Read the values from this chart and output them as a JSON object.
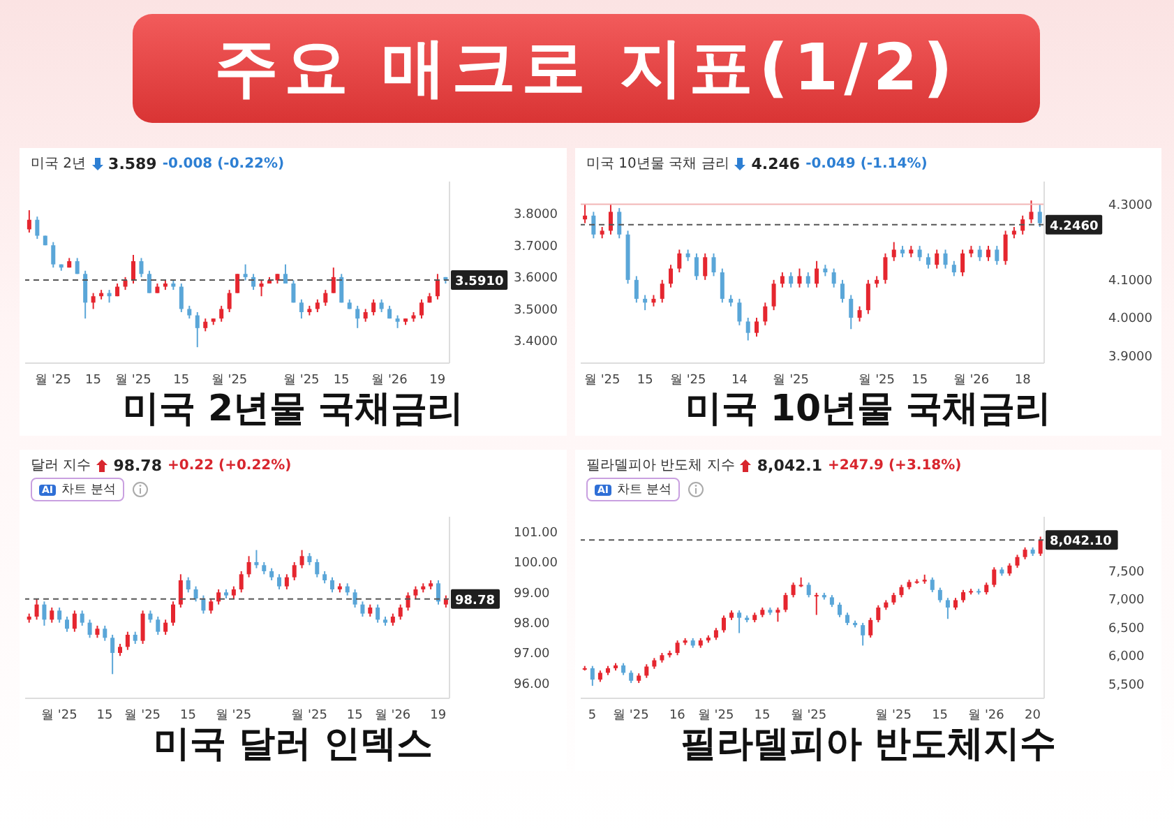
{
  "chart_data": [
    {
      "type": "other",
      "title": "주요 매크로 지표(1/2)"
    },
    {
      "type": "candlestick",
      "title": "미국 2년물 국채금리",
      "subtitle": "미국 2년",
      "annotations": [
        "3.589",
        "-0.008 (-0.22%)"
      ],
      "categories": [
        null,
        null,
        null,
        "월 '25",
        null,
        null,
        null,
        null,
        "15",
        null,
        null,
        null,
        null,
        "월 '25",
        null,
        null,
        null,
        null,
        null,
        "15",
        null,
        null,
        null,
        null,
        null,
        "월 '25",
        null,
        null,
        null,
        null,
        null,
        null,
        null,
        null,
        "월 '25",
        null,
        null,
        null,
        null,
        "15",
        null,
        null,
        null,
        null,
        null,
        "월 '26",
        null,
        null,
        null,
        null,
        null,
        "19",
        null
      ],
      "ohlc": [
        [
          3.75,
          3.81,
          3.74,
          3.78
        ],
        [
          3.78,
          3.79,
          3.72,
          3.73
        ],
        [
          3.73,
          3.73,
          3.7,
          3.7
        ],
        [
          3.7,
          3.71,
          3.63,
          3.64
        ],
        [
          3.64,
          3.64,
          3.62,
          3.63
        ],
        [
          3.63,
          3.66,
          3.63,
          3.65
        ],
        [
          3.65,
          3.66,
          3.61,
          3.61
        ],
        [
          3.61,
          3.62,
          3.47,
          3.52
        ],
        [
          3.52,
          3.55,
          3.5,
          3.54
        ],
        [
          3.54,
          3.56,
          3.53,
          3.55
        ],
        [
          3.55,
          3.56,
          3.52,
          3.54
        ],
        [
          3.54,
          3.58,
          3.54,
          3.57
        ],
        [
          3.57,
          3.6,
          3.56,
          3.59
        ],
        [
          3.59,
          3.67,
          3.58,
          3.65
        ],
        [
          3.65,
          3.66,
          3.6,
          3.61
        ],
        [
          3.61,
          3.62,
          3.55,
          3.55
        ],
        [
          3.55,
          3.58,
          3.55,
          3.57
        ],
        [
          3.57,
          3.59,
          3.56,
          3.58
        ],
        [
          3.58,
          3.59,
          3.56,
          3.57
        ],
        [
          3.57,
          3.58,
          3.49,
          3.5
        ],
        [
          3.5,
          3.51,
          3.47,
          3.48
        ],
        [
          3.48,
          3.49,
          3.38,
          3.44
        ],
        [
          3.44,
          3.47,
          3.43,
          3.46
        ],
        [
          3.46,
          3.47,
          3.45,
          3.47
        ],
        [
          3.47,
          3.51,
          3.46,
          3.5
        ],
        [
          3.5,
          3.56,
          3.49,
          3.55
        ],
        [
          3.55,
          3.61,
          3.55,
          3.61
        ],
        [
          3.61,
          3.64,
          3.59,
          3.6
        ],
        [
          3.6,
          3.61,
          3.56,
          3.57
        ],
        [
          3.57,
          3.59,
          3.54,
          3.58
        ],
        [
          3.58,
          3.6,
          3.58,
          3.59
        ],
        [
          3.59,
          3.61,
          3.58,
          3.61
        ],
        [
          3.61,
          3.64,
          3.58,
          3.58
        ],
        [
          3.58,
          3.59,
          3.52,
          3.52
        ],
        [
          3.52,
          3.53,
          3.47,
          3.49
        ],
        [
          3.49,
          3.51,
          3.48,
          3.5
        ],
        [
          3.5,
          3.53,
          3.49,
          3.52
        ],
        [
          3.52,
          3.56,
          3.51,
          3.55
        ],
        [
          3.55,
          3.63,
          3.55,
          3.6
        ],
        [
          3.6,
          3.61,
          3.52,
          3.52
        ],
        [
          3.52,
          3.53,
          3.5,
          3.5
        ],
        [
          3.5,
          3.51,
          3.44,
          3.47
        ],
        [
          3.47,
          3.5,
          3.46,
          3.49
        ],
        [
          3.49,
          3.53,
          3.48,
          3.52
        ],
        [
          3.52,
          3.53,
          3.49,
          3.5
        ],
        [
          3.5,
          3.51,
          3.47,
          3.47
        ],
        [
          3.47,
          3.48,
          3.44,
          3.46
        ],
        [
          3.46,
          3.47,
          3.45,
          3.47
        ],
        [
          3.47,
          3.49,
          3.46,
          3.48
        ],
        [
          3.48,
          3.53,
          3.47,
          3.52
        ],
        [
          3.52,
          3.55,
          3.52,
          3.54
        ],
        [
          3.54,
          3.61,
          3.53,
          3.59
        ],
        [
          3.6,
          3.6,
          3.58,
          3.59
        ]
      ],
      "ylim": [
        3.33,
        3.9
      ],
      "yticks": [
        {
          "value": 3.4,
          "label": "3.4000"
        },
        {
          "value": 3.5,
          "label": "3.5000"
        },
        {
          "value": 3.6,
          "label": "3.6000"
        },
        {
          "value": 3.7,
          "label": "3.7000"
        },
        {
          "value": 3.8,
          "label": "3.8000"
        }
      ],
      "ref_lines": [
        {
          "axis": "y",
          "value": 3.591,
          "label": "3.5910",
          "line_style": "dashed"
        }
      ]
    },
    {
      "type": "candlestick",
      "title": "미국 10년물 국채금리",
      "subtitle": "미국 10년물 국채 금리",
      "annotations": [
        "4.246",
        "-0.049 (-1.14%)"
      ],
      "categories": [
        null,
        null,
        "월 '25",
        null,
        null,
        null,
        null,
        "15",
        null,
        null,
        null,
        null,
        "월 '25",
        null,
        null,
        null,
        null,
        null,
        "14",
        null,
        null,
        null,
        null,
        null,
        "월 '25",
        null,
        null,
        null,
        null,
        null,
        null,
        null,
        null,
        null,
        "월 '25",
        null,
        null,
        null,
        null,
        "15",
        null,
        null,
        null,
        null,
        null,
        "월 '26",
        null,
        null,
        null,
        null,
        null,
        "18",
        null,
        null
      ],
      "ohlc": [
        [
          4.26,
          4.3,
          4.25,
          4.27
        ],
        [
          4.27,
          4.28,
          4.21,
          4.22
        ],
        [
          4.22,
          4.24,
          4.21,
          4.23
        ],
        [
          4.23,
          4.3,
          4.22,
          4.28
        ],
        [
          4.28,
          4.29,
          4.21,
          4.22
        ],
        [
          4.22,
          4.23,
          4.09,
          4.1
        ],
        [
          4.1,
          4.11,
          4.04,
          4.05
        ],
        [
          4.05,
          4.06,
          4.02,
          4.04
        ],
        [
          4.04,
          4.06,
          4.03,
          4.05
        ],
        [
          4.05,
          4.1,
          4.04,
          4.09
        ],
        [
          4.09,
          4.14,
          4.08,
          4.13
        ],
        [
          4.13,
          4.18,
          4.12,
          4.17
        ],
        [
          4.17,
          4.18,
          4.15,
          4.16
        ],
        [
          4.16,
          4.17,
          4.1,
          4.11
        ],
        [
          4.11,
          4.17,
          4.1,
          4.16
        ],
        [
          4.16,
          4.17,
          4.11,
          4.12
        ],
        [
          4.12,
          4.13,
          4.04,
          4.05
        ],
        [
          4.05,
          4.06,
          4.03,
          4.04
        ],
        [
          4.04,
          4.05,
          3.98,
          3.99
        ],
        [
          3.99,
          4.0,
          3.94,
          3.96
        ],
        [
          3.96,
          4.0,
          3.95,
          3.99
        ],
        [
          3.99,
          4.04,
          3.98,
          4.03
        ],
        [
          4.03,
          4.1,
          4.02,
          4.09
        ],
        [
          4.09,
          4.12,
          4.08,
          4.11
        ],
        [
          4.11,
          4.12,
          4.08,
          4.09
        ],
        [
          4.09,
          4.13,
          4.08,
          4.11
        ],
        [
          4.11,
          4.12,
          4.08,
          4.09
        ],
        [
          4.09,
          4.15,
          4.08,
          4.13
        ],
        [
          4.13,
          4.14,
          4.11,
          4.12
        ],
        [
          4.12,
          4.13,
          4.08,
          4.09
        ],
        [
          4.09,
          4.1,
          4.04,
          4.05
        ],
        [
          4.05,
          4.06,
          3.97,
          4.0
        ],
        [
          4.0,
          4.03,
          3.99,
          4.02
        ],
        [
          4.02,
          4.1,
          4.01,
          4.09
        ],
        [
          4.09,
          4.11,
          4.08,
          4.1
        ],
        [
          4.1,
          4.17,
          4.09,
          4.16
        ],
        [
          4.16,
          4.2,
          4.15,
          4.18
        ],
        [
          4.18,
          4.19,
          4.16,
          4.17
        ],
        [
          4.17,
          4.19,
          4.16,
          4.18
        ],
        [
          4.18,
          4.19,
          4.15,
          4.16
        ],
        [
          4.16,
          4.17,
          4.13,
          4.14
        ],
        [
          4.14,
          4.18,
          4.13,
          4.17
        ],
        [
          4.17,
          4.18,
          4.13,
          4.14
        ],
        [
          4.14,
          4.15,
          4.11,
          4.12
        ],
        [
          4.12,
          4.18,
          4.11,
          4.17
        ],
        [
          4.17,
          4.19,
          4.16,
          4.18
        ],
        [
          4.18,
          4.19,
          4.15,
          4.16
        ],
        [
          4.16,
          4.19,
          4.15,
          4.18
        ],
        [
          4.18,
          4.19,
          4.14,
          4.15
        ],
        [
          4.15,
          4.23,
          4.14,
          4.22
        ],
        [
          4.22,
          4.24,
          4.21,
          4.23
        ],
        [
          4.23,
          4.27,
          4.22,
          4.26
        ],
        [
          4.26,
          4.31,
          4.25,
          4.28
        ],
        [
          4.28,
          4.3,
          4.24,
          4.25
        ]
      ],
      "ylim": [
        3.88,
        4.36
      ],
      "yticks": [
        {
          "value": 3.9,
          "label": "3.9000"
        },
        {
          "value": 4.0,
          "label": "4.0000"
        },
        {
          "value": 4.1,
          "label": "4.1000"
        },
        {
          "value": 4.3,
          "label": "4.3000"
        }
      ],
      "ref_lines": [
        {
          "axis": "y",
          "value": 4.3,
          "color": "#f2b5b5",
          "line_style": "solid"
        },
        {
          "axis": "y",
          "value": 4.246,
          "label": "4.2460",
          "line_style": "dashed"
        }
      ]
    },
    {
      "type": "candlestick",
      "title": "미국 달러 인덱스",
      "subtitle": "달러 지수",
      "annotations": [
        "98.78",
        "+0.22 (+0.22%)",
        "AI",
        "차트 분석"
      ],
      "categories": [
        null,
        null,
        null,
        null,
        "월 '25",
        null,
        null,
        null,
        null,
        null,
        "15",
        null,
        null,
        null,
        null,
        "월 '25",
        null,
        null,
        null,
        null,
        null,
        "15",
        null,
        null,
        null,
        null,
        null,
        "월 '25",
        null,
        null,
        null,
        null,
        null,
        null,
        null,
        null,
        null,
        "월 '25",
        null,
        null,
        null,
        null,
        null,
        "15",
        null,
        null,
        null,
        null,
        "월 '26",
        null,
        null,
        null,
        null,
        null,
        "19",
        null
      ],
      "ohlc": [
        [
          98.1,
          98.3,
          98.0,
          98.2
        ],
        [
          98.2,
          98.8,
          98.1,
          98.6
        ],
        [
          98.6,
          98.7,
          97.9,
          98.1
        ],
        [
          98.1,
          98.5,
          98.0,
          98.4
        ],
        [
          98.4,
          98.5,
          98.0,
          98.1
        ],
        [
          98.1,
          98.2,
          97.7,
          97.8
        ],
        [
          97.8,
          98.4,
          97.7,
          98.3
        ],
        [
          98.3,
          98.4,
          97.9,
          98.0
        ],
        [
          98.0,
          98.1,
          97.5,
          97.6
        ],
        [
          97.6,
          97.9,
          97.5,
          97.8
        ],
        [
          97.8,
          97.9,
          97.4,
          97.5
        ],
        [
          97.5,
          97.6,
          96.3,
          97.0
        ],
        [
          97.0,
          97.3,
          96.9,
          97.2
        ],
        [
          97.2,
          97.7,
          97.1,
          97.6
        ],
        [
          97.6,
          97.7,
          97.3,
          97.4
        ],
        [
          97.4,
          98.4,
          97.3,
          98.3
        ],
        [
          98.3,
          98.4,
          98.0,
          98.1
        ],
        [
          98.1,
          98.2,
          97.6,
          97.7
        ],
        [
          97.7,
          98.1,
          97.6,
          98.0
        ],
        [
          98.0,
          98.7,
          97.9,
          98.6
        ],
        [
          98.6,
          99.6,
          98.5,
          99.4
        ],
        [
          99.4,
          99.5,
          99.0,
          99.1
        ],
        [
          99.1,
          99.2,
          98.7,
          98.8
        ],
        [
          98.8,
          98.9,
          98.3,
          98.4
        ],
        [
          98.4,
          98.8,
          98.3,
          98.7
        ],
        [
          98.7,
          99.1,
          98.6,
          99.0
        ],
        [
          99.0,
          99.1,
          98.8,
          98.9
        ],
        [
          98.9,
          99.2,
          98.8,
          99.1
        ],
        [
          99.1,
          99.7,
          99.0,
          99.6
        ],
        [
          99.6,
          100.2,
          99.5,
          100.0
        ],
        [
          100.0,
          100.4,
          99.8,
          99.9
        ],
        [
          99.9,
          100.0,
          99.6,
          99.7
        ],
        [
          99.7,
          99.8,
          99.4,
          99.5
        ],
        [
          99.5,
          99.6,
          99.1,
          99.2
        ],
        [
          99.2,
          99.6,
          99.1,
          99.5
        ],
        [
          99.5,
          100.0,
          99.4,
          99.9
        ],
        [
          99.9,
          100.4,
          99.8,
          100.2
        ],
        [
          100.2,
          100.3,
          99.9,
          100.0
        ],
        [
          100.0,
          100.1,
          99.5,
          99.6
        ],
        [
          99.6,
          99.7,
          99.3,
          99.4
        ],
        [
          99.4,
          99.5,
          99.0,
          99.1
        ],
        [
          99.1,
          99.3,
          99.0,
          99.2
        ],
        [
          99.2,
          99.3,
          98.9,
          99.0
        ],
        [
          99.0,
          99.1,
          98.5,
          98.6
        ],
        [
          98.6,
          98.7,
          98.2,
          98.3
        ],
        [
          98.3,
          98.6,
          98.2,
          98.5
        ],
        [
          98.5,
          98.6,
          98.0,
          98.1
        ],
        [
          98.1,
          98.2,
          97.9,
          98.0
        ],
        [
          98.0,
          98.3,
          97.9,
          98.2
        ],
        [
          98.2,
          98.6,
          98.1,
          98.5
        ],
        [
          98.5,
          99.0,
          98.4,
          98.9
        ],
        [
          98.9,
          99.2,
          98.8,
          99.1
        ],
        [
          99.1,
          99.3,
          99.0,
          99.2
        ],
        [
          99.2,
          99.4,
          99.1,
          99.3
        ],
        [
          99.3,
          99.4,
          98.6,
          98.7
        ],
        [
          98.6,
          98.9,
          98.5,
          98.8
        ]
      ],
      "ylim": [
        95.5,
        101.5
      ],
      "yticks": [
        {
          "value": 96,
          "label": "96.00"
        },
        {
          "value": 97,
          "label": "97.00"
        },
        {
          "value": 98,
          "label": "98.00"
        },
        {
          "value": 99,
          "label": "99.00"
        },
        {
          "value": 100,
          "label": "100.00"
        },
        {
          "value": 101,
          "label": "101.00"
        }
      ],
      "ref_lines": [
        {
          "axis": "y",
          "value": 98.78,
          "label": "98.78",
          "line_style": "dashed"
        }
      ]
    },
    {
      "type": "candlestick",
      "title": "필라델피아 반도체지수",
      "subtitle": "필라델피아 반도체 지수",
      "annotations": [
        "8,042.1",
        "+247.9 (+3.18%)",
        "AI",
        "차트 분석"
      ],
      "categories": [
        null,
        "5",
        null,
        null,
        null,
        null,
        "월 '25",
        null,
        null,
        null,
        null,
        null,
        "16",
        null,
        null,
        null,
        null,
        "월 '25",
        null,
        null,
        null,
        null,
        null,
        "15",
        null,
        null,
        null,
        null,
        null,
        "월 '25",
        null,
        null,
        null,
        null,
        null,
        null,
        null,
        null,
        null,
        null,
        "월 '25",
        null,
        null,
        null,
        null,
        null,
        "15",
        null,
        null,
        null,
        null,
        null,
        "월 '26",
        null,
        null,
        null,
        null,
        null,
        "20",
        null
      ],
      "ohlc": [
        [
          5760,
          5820,
          5740,
          5780
        ],
        [
          5780,
          5820,
          5470,
          5580
        ],
        [
          5580,
          5740,
          5540,
          5700
        ],
        [
          5700,
          5820,
          5660,
          5780
        ],
        [
          5780,
          5870,
          5740,
          5830
        ],
        [
          5830,
          5870,
          5660,
          5700
        ],
        [
          5700,
          5740,
          5520,
          5560
        ],
        [
          5560,
          5690,
          5520,
          5650
        ],
        [
          5650,
          5850,
          5610,
          5810
        ],
        [
          5810,
          5960,
          5770,
          5920
        ],
        [
          5920,
          6050,
          5880,
          6010
        ],
        [
          6010,
          6090,
          5970,
          6050
        ],
        [
          6050,
          6270,
          6010,
          6230
        ],
        [
          6230,
          6310,
          6190,
          6270
        ],
        [
          6270,
          6310,
          6140,
          6180
        ],
        [
          6180,
          6310,
          6140,
          6270
        ],
        [
          6270,
          6360,
          6230,
          6320
        ],
        [
          6320,
          6490,
          6280,
          6450
        ],
        [
          6450,
          6710,
          6410,
          6670
        ],
        [
          6670,
          6800,
          6630,
          6760
        ],
        [
          6760,
          6800,
          6400,
          6670
        ],
        [
          6670,
          6710,
          6590,
          6630
        ],
        [
          6630,
          6760,
          6590,
          6720
        ],
        [
          6720,
          6850,
          6680,
          6810
        ],
        [
          6810,
          6850,
          6720,
          6760
        ],
        [
          6760,
          6850,
          6600,
          6810
        ],
        [
          6810,
          7110,
          6770,
          7070
        ],
        [
          7070,
          7290,
          7030,
          7250
        ],
        [
          7250,
          7380,
          7210,
          7250
        ],
        [
          7250,
          7290,
          7030,
          7070
        ],
        [
          7070,
          7110,
          6720,
          7070
        ],
        [
          7070,
          7110,
          6990,
          7030
        ],
        [
          7030,
          7070,
          6860,
          6900
        ],
        [
          6900,
          6940,
          6680,
          6720
        ],
        [
          6720,
          6760,
          6540,
          6580
        ],
        [
          6580,
          6620,
          6500,
          6540
        ],
        [
          6540,
          6580,
          6180,
          6360
        ],
        [
          6360,
          6670,
          6320,
          6630
        ],
        [
          6630,
          6890,
          6590,
          6850
        ],
        [
          6850,
          6980,
          6810,
          6940
        ],
        [
          6940,
          7110,
          6900,
          7070
        ],
        [
          7070,
          7250,
          7030,
          7210
        ],
        [
          7210,
          7340,
          7170,
          7300
        ],
        [
          7300,
          7350,
          7270,
          7310
        ],
        [
          7310,
          7430,
          7270,
          7340
        ],
        [
          7340,
          7380,
          7120,
          7160
        ],
        [
          7160,
          7200,
          6940,
          6980
        ],
        [
          6980,
          7020,
          6650,
          6850
        ],
        [
          6850,
          7020,
          6810,
          6980
        ],
        [
          6980,
          7160,
          6940,
          7120
        ],
        [
          7120,
          7180,
          7080,
          7140
        ],
        [
          7140,
          7180,
          7080,
          7120
        ],
        [
          7120,
          7290,
          7080,
          7250
        ],
        [
          7250,
          7560,
          7210,
          7520
        ],
        [
          7520,
          7560,
          7410,
          7450
        ],
        [
          7450,
          7630,
          7410,
          7590
        ],
        [
          7590,
          7780,
          7550,
          7740
        ],
        [
          7740,
          7910,
          7700,
          7870
        ],
        [
          7870,
          7910,
          7760,
          7800
        ],
        [
          7800,
          8100,
          7760,
          8042.1
        ]
      ],
      "ylim": [
        5250,
        8450
      ],
      "yticks": [
        {
          "value": 5500,
          "label": "5,500"
        },
        {
          "value": 6000,
          "label": "6,000"
        },
        {
          "value": 6500,
          "label": "6,500"
        },
        {
          "value": 7000,
          "label": "7,000"
        },
        {
          "value": 7500,
          "label": "7,500"
        }
      ],
      "ref_lines": [
        {
          "axis": "y",
          "value": 8042.1,
          "label": "8,042.10",
          "line_style": "dashed"
        }
      ]
    }
  ]
}
